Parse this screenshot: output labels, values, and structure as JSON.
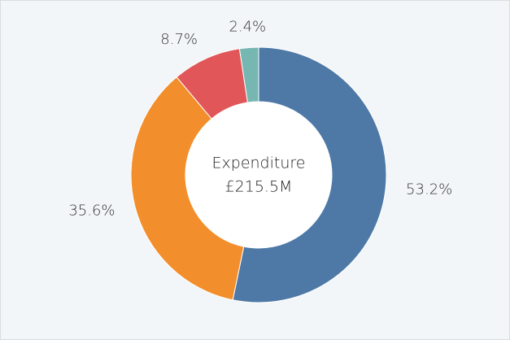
{
  "chart_data": {
    "type": "donut",
    "center_title": "Expenditure",
    "center_value": "£215.5M",
    "values": [
      53.2,
      35.6,
      8.7,
      2.4
    ],
    "value_labels": [
      "53.2%",
      "35.6%",
      "8.7%",
      "2.4%"
    ],
    "colors": [
      "#4e79a7",
      "#f28e2b",
      "#e15759",
      "#76b7b2"
    ]
  }
}
